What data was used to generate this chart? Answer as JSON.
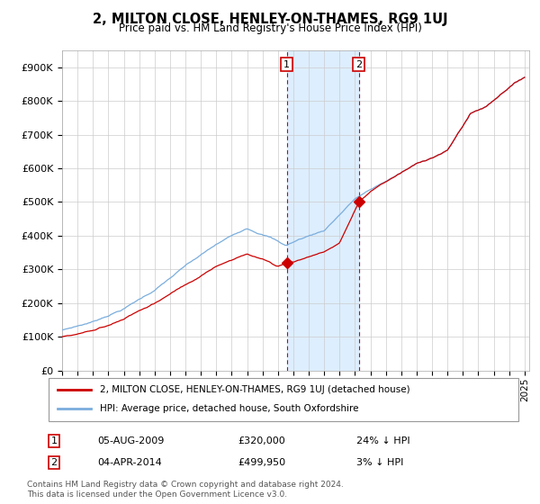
{
  "title": "2, MILTON CLOSE, HENLEY-ON-THAMES, RG9 1UJ",
  "subtitle": "Price paid vs. HM Land Registry's House Price Index (HPI)",
  "hpi_color": "#7aaddd",
  "price_color": "#cc0000",
  "marker_color": "#cc0000",
  "bg_color": "#ffffff",
  "grid_color": "#cccccc",
  "highlight_bg": "#ddeeff",
  "ylim": [
    0,
    950000
  ],
  "yticks": [
    0,
    100000,
    200000,
    300000,
    400000,
    500000,
    600000,
    700000,
    800000,
    900000
  ],
  "ytick_labels": [
    "£0",
    "£100K",
    "£200K",
    "£300K",
    "£400K",
    "£500K",
    "£600K",
    "£700K",
    "£800K",
    "£900K"
  ],
  "year_start": 1995,
  "year_end": 2025,
  "sale1_year": 2009.58,
  "sale1_price": 320000,
  "sale1_label": "1",
  "sale1_date": "05-AUG-2009",
  "sale1_pct": "24% ↓ HPI",
  "sale2_year": 2014.25,
  "sale2_price": 499950,
  "sale2_label": "2",
  "sale2_date": "04-APR-2014",
  "sale2_pct": "3% ↓ HPI",
  "legend_line1": "2, MILTON CLOSE, HENLEY-ON-THAMES, RG9 1UJ (detached house)",
  "legend_line2": "HPI: Average price, detached house, South Oxfordshire",
  "footer1": "Contains HM Land Registry data © Crown copyright and database right 2024.",
  "footer2": "This data is licensed under the Open Government Licence v3.0."
}
